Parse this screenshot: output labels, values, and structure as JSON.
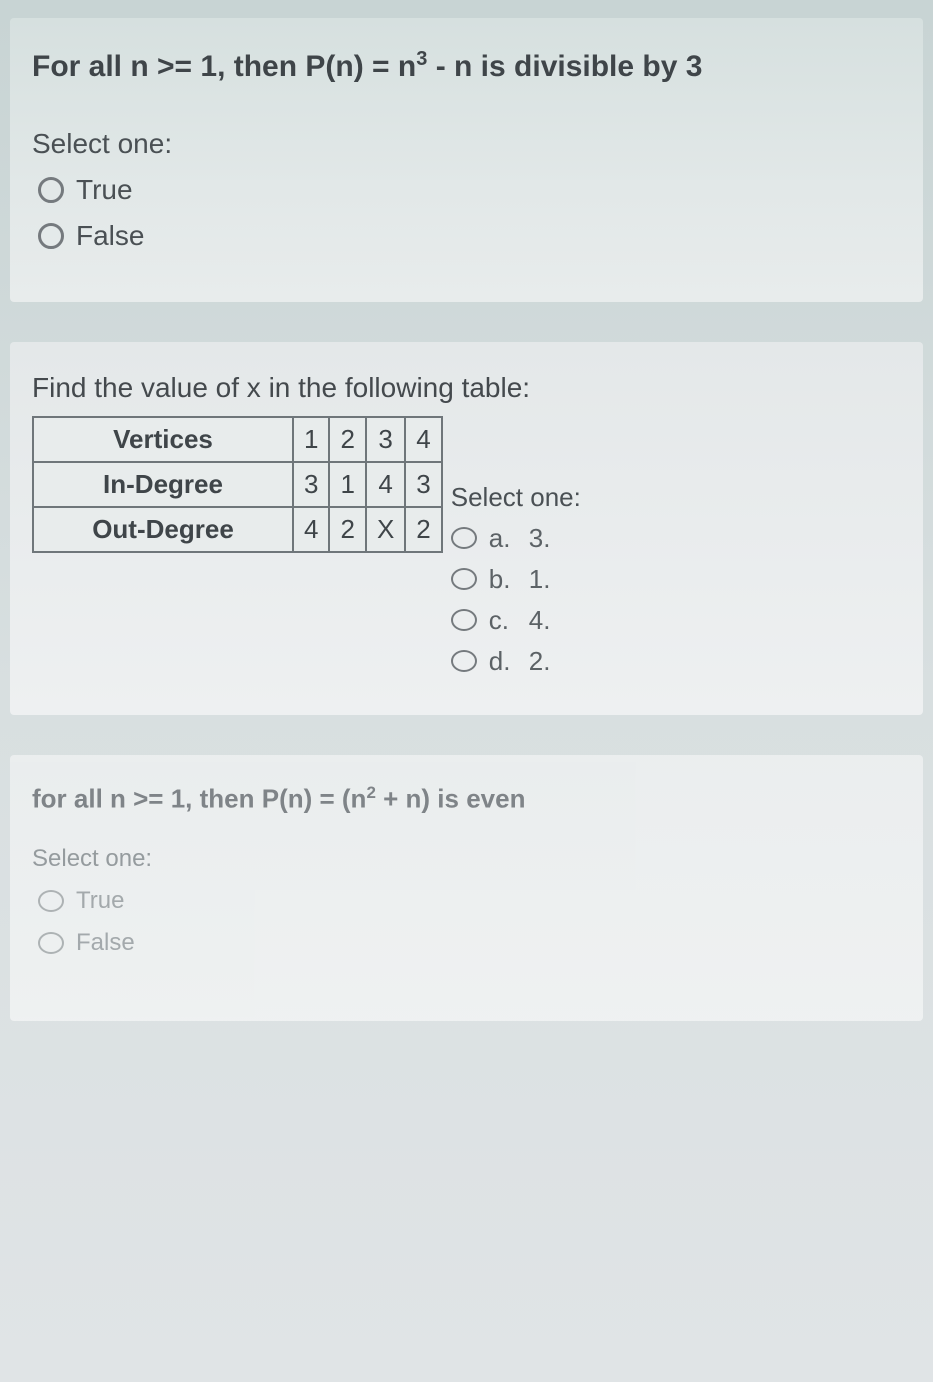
{
  "colors": {
    "page_bg_top": "#c8d4d4",
    "page_bg_bottom": "#e0e4e6",
    "card_bg": "#e2e8e8",
    "text_primary": "#3f4549",
    "text_secondary": "#4a5054",
    "text_faded": "#9aa0a3",
    "radio_border": "#757a7e",
    "table_border": "#6f767a"
  },
  "typography": {
    "title_fontsize_pt": 22,
    "body_fontsize_pt": 20,
    "font_family": "Arial"
  },
  "q1": {
    "title_prefix": "For all n >= 1, then P(n) = n",
    "title_exp": "3",
    "title_suffix": " - n  is divisible by 3",
    "prompt": "Select one:",
    "options": [
      {
        "label": "True"
      },
      {
        "label": "False"
      }
    ]
  },
  "q2": {
    "title": "Find the value of x in the following table:",
    "table": {
      "row_headers": [
        "Vertices",
        "In-Degree",
        "Out-Degree"
      ],
      "columns": [
        "1",
        "2",
        "3",
        "4"
      ],
      "rows": [
        [
          "1",
          "2",
          "3",
          "4"
        ],
        [
          "3",
          "1",
          "4",
          "3"
        ],
        [
          "4",
          "2",
          "X",
          "2"
        ]
      ],
      "border_color": "#6f767a",
      "cell_fontsize": 26
    },
    "prompt": "Select one:",
    "options": [
      {
        "letter": "a.",
        "value": "3."
      },
      {
        "letter": "b.",
        "value": "1."
      },
      {
        "letter": "c.",
        "value": "4."
      },
      {
        "letter": "d.",
        "value": "2."
      }
    ]
  },
  "q3": {
    "title_prefix": "for all n >= 1, then P(n) = (n",
    "title_exp": "2",
    "title_suffix": " + n) is even",
    "prompt": "Select one:",
    "options": [
      {
        "label": "True"
      },
      {
        "label": "False"
      }
    ]
  }
}
